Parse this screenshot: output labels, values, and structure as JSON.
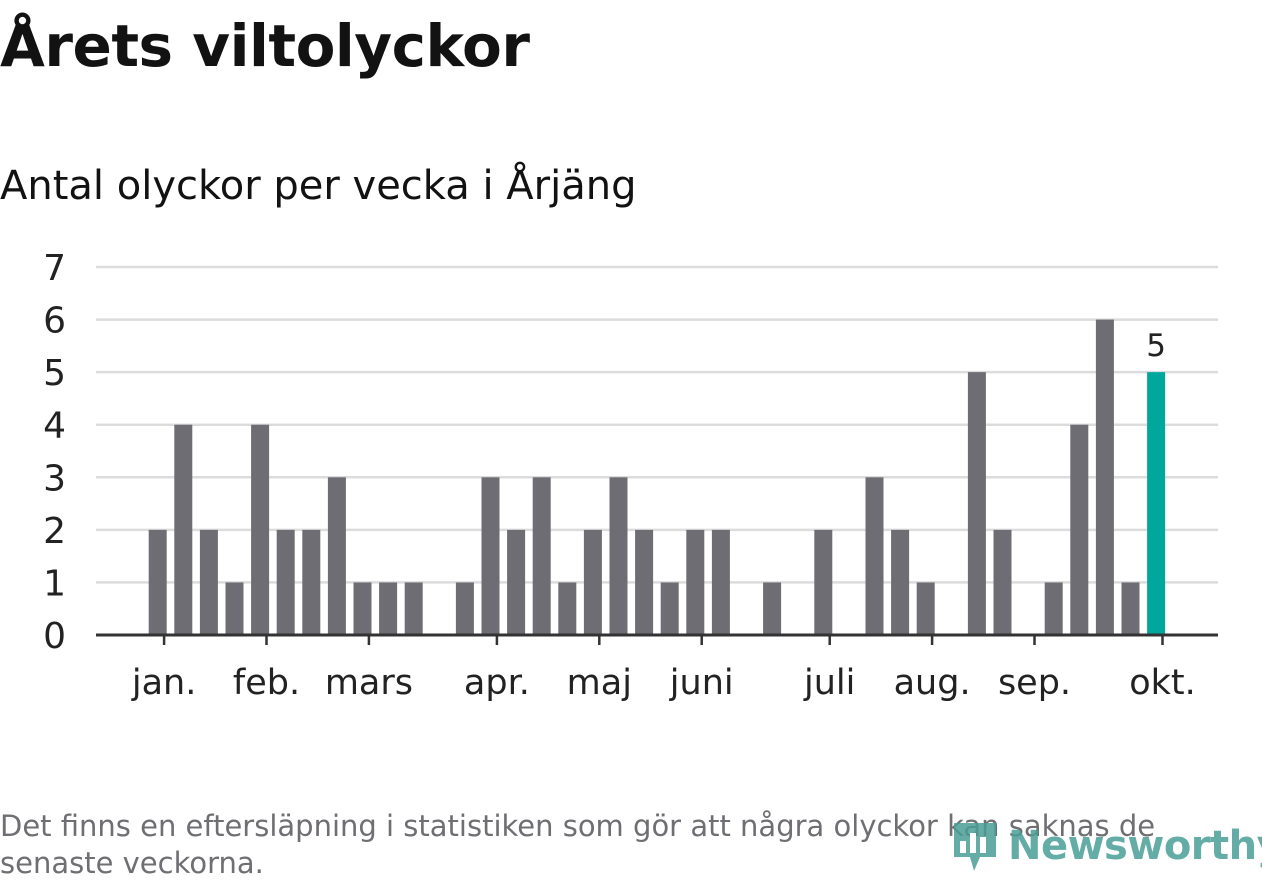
{
  "header": {
    "title": "Årets viltolyckor",
    "subtitle": "Antal olyckor per vecka i Årjäng"
  },
  "footnote": "Det finns en eftersläpning i statistiken som gör att några olyckor kan saknas de senaste veckorna.",
  "logo": {
    "text": "Newsworthy",
    "icon": "bar-chart-logo-icon"
  },
  "colors": {
    "bar": "#6e6d73",
    "highlight": "#00a79d",
    "grid": "#dcdcdc",
    "axis": "#333333",
    "text": "#222222"
  },
  "chart_data": {
    "type": "bar",
    "title": "Antal olyckor per vecka i Årjäng",
    "xlabel": "",
    "ylabel": "",
    "ylim": [
      0,
      7
    ],
    "yticks": [
      0,
      1,
      2,
      3,
      4,
      5,
      6,
      7
    ],
    "grid": true,
    "values": [
      0,
      0,
      2,
      4,
      2,
      1,
      4,
      2,
      2,
      3,
      1,
      1,
      1,
      0,
      1,
      3,
      2,
      3,
      1,
      2,
      3,
      2,
      1,
      2,
      2,
      0,
      1,
      0,
      2,
      0,
      3,
      2,
      1,
      0,
      5,
      2,
      0,
      1,
      4,
      6,
      1,
      5
    ],
    "highlight_index": 41,
    "highlight_label": "5",
    "month_ticks": [
      {
        "label": "jan.",
        "week": 2.25
      },
      {
        "label": "feb.",
        "week": 6.25
      },
      {
        "label": "mars",
        "week": 10.25
      },
      {
        "label": "apr.",
        "week": 15.25
      },
      {
        "label": "maj",
        "week": 19.25
      },
      {
        "label": "juni",
        "week": 23.25
      },
      {
        "label": "juli",
        "week": 28.25
      },
      {
        "label": "aug.",
        "week": 32.25
      },
      {
        "label": "sep.",
        "week": 36.25
      },
      {
        "label": "okt.",
        "week": 41.25
      }
    ]
  }
}
